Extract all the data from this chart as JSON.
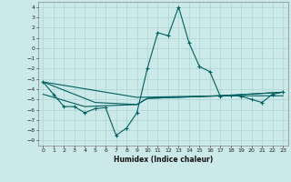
{
  "xlabel": "Humidex (Indice chaleur)",
  "ylabel": "",
  "background_color": "#cce9e9",
  "grid_color": "#aad4d4",
  "line_color": "#005f5f",
  "xlim": [
    -0.5,
    23.5
  ],
  "ylim": [
    -9.5,
    4.5
  ],
  "xticks": [
    0,
    1,
    2,
    3,
    4,
    5,
    6,
    7,
    8,
    9,
    10,
    11,
    12,
    13,
    14,
    15,
    16,
    17,
    18,
    19,
    20,
    21,
    22,
    23
  ],
  "yticks": [
    4,
    3,
    2,
    1,
    0,
    -1,
    -2,
    -3,
    -4,
    -5,
    -6,
    -7,
    -8,
    -9
  ],
  "series_main": [
    [
      0,
      -3.3
    ],
    [
      1,
      -4.5
    ],
    [
      2,
      -5.7
    ],
    [
      3,
      -5.7
    ],
    [
      4,
      -6.3
    ],
    [
      5,
      -5.9
    ],
    [
      6,
      -5.8
    ],
    [
      7,
      -8.5
    ],
    [
      8,
      -7.8
    ],
    [
      9,
      -6.3
    ],
    [
      10,
      -2.0
    ],
    [
      11,
      1.5
    ],
    [
      12,
      1.2
    ],
    [
      13,
      4.0
    ],
    [
      14,
      0.5
    ],
    [
      15,
      -1.8
    ],
    [
      16,
      -2.3
    ],
    [
      17,
      -4.7
    ],
    [
      18,
      -4.6
    ],
    [
      19,
      -4.7
    ],
    [
      20,
      -5.0
    ],
    [
      21,
      -5.3
    ],
    [
      22,
      -4.5
    ],
    [
      23,
      -4.3
    ]
  ],
  "series_trend1": [
    [
      0,
      -3.3
    ],
    [
      5,
      -5.3
    ],
    [
      9,
      -5.5
    ],
    [
      10,
      -4.9
    ],
    [
      17,
      -4.65
    ],
    [
      23,
      -4.3
    ]
  ],
  "series_trend2": [
    [
      0,
      -4.5
    ],
    [
      4,
      -5.7
    ],
    [
      9,
      -5.5
    ],
    [
      10,
      -4.9
    ],
    [
      17,
      -4.65
    ],
    [
      23,
      -4.65
    ]
  ],
  "series_trend3": [
    [
      0,
      -3.3
    ],
    [
      9,
      -4.8
    ],
    [
      17,
      -4.65
    ],
    [
      23,
      -4.3
    ]
  ]
}
